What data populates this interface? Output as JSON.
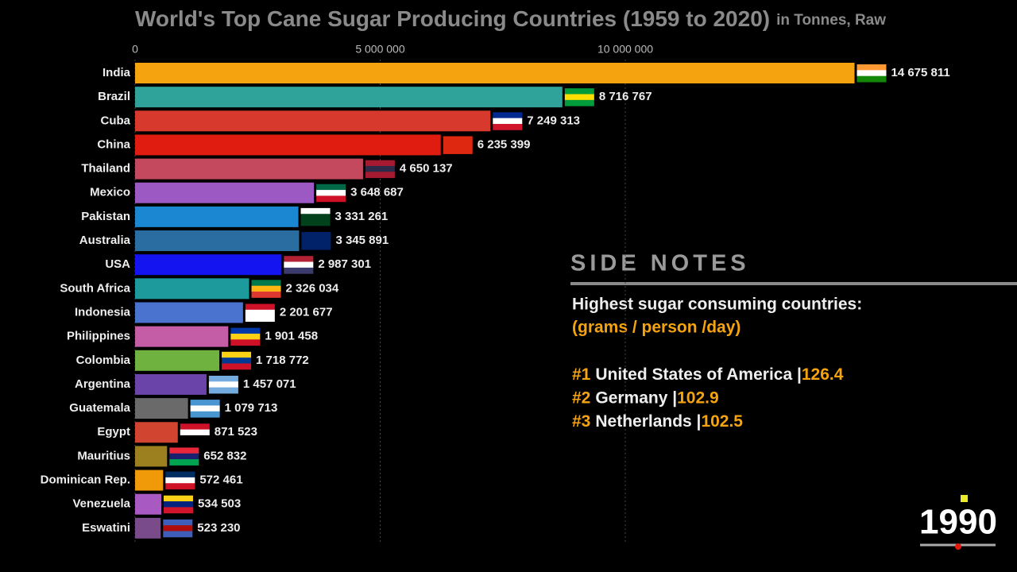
{
  "chart_data": {
    "type": "hbar",
    "title": "World's Top Cane Sugar Producing Countries (1959 to 2020)",
    "subtitle": "in Tonnes, Raw",
    "categories": [
      "India",
      "Brazil",
      "Cuba",
      "China",
      "Thailand",
      "Mexico",
      "Pakistan",
      "Australia",
      "USA",
      "South Africa",
      "Indonesia",
      "Philippines",
      "Colombia",
      "Argentina",
      "Guatemala",
      "Egypt",
      "Mauritius",
      "Dominican Rep.",
      "Venezuela",
      "Eswatini"
    ],
    "values": [
      14675811,
      8716767,
      7249313,
      6235399,
      4650137,
      3648687,
      3331261,
      3345891,
      2987301,
      2326034,
      2201677,
      1901458,
      1718772,
      1457071,
      1079713,
      871523,
      652832,
      572461,
      534503,
      523230
    ],
    "value_labels": [
      "14 675 811",
      "8 716 767",
      "7 249 313",
      "6 235 399",
      "4 650 137",
      "3 648 687",
      "3 331 261",
      "3 345 891",
      "2 987 301",
      "2 326 034",
      "2 201 677",
      "1 901 458",
      "1 718 772",
      "1 457 071",
      "1 079 713",
      "871 523",
      "652 832",
      "572 461",
      "534 503",
      "523 230"
    ],
    "colors": [
      "#f5a40f",
      "#2fa39a",
      "#d73a2c",
      "#e01b10",
      "#c4485e",
      "#9c59c4",
      "#1b86d1",
      "#2a6ea1",
      "#1414f0",
      "#1c9a9c",
      "#4a72cf",
      "#c45da6",
      "#6fb23f",
      "#6a44a8",
      "#6a6a6a",
      "#d1442f",
      "#9c7f1e",
      "#f09a0a",
      "#a85ac2",
      "#7a4b8a"
    ],
    "xlim": [
      0,
      15000000
    ],
    "xticks": [
      0,
      {
        "value": 5000000,
        "label": "5 000 000"
      },
      {
        "value": 10000000,
        "label": "10 000 000"
      }
    ],
    "grid": true,
    "year_label": "1990"
  },
  "side_notes": {
    "heading": "SIDE NOTES",
    "line1": "Highest sugar consuming countries:",
    "line2": "(grams / person /day)",
    "ranks": [
      {
        "rank": "#1",
        "country": "United States of America |",
        "value": 126.4
      },
      {
        "rank": "#2",
        "country": "Germany |",
        "value": 102.9
      },
      {
        "rank": "#3",
        "country": "Netherlands |",
        "value": 102.5
      }
    ]
  }
}
